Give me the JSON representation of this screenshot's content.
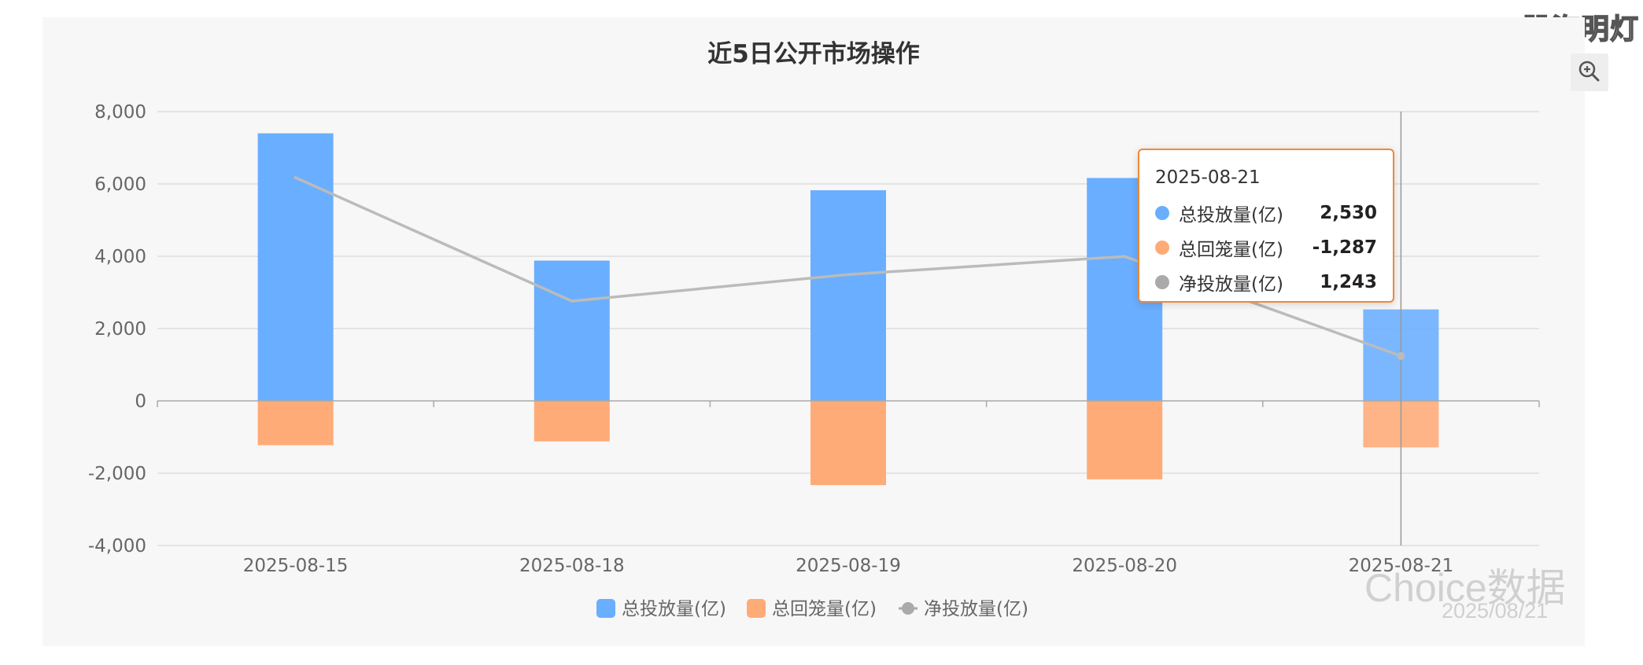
{
  "chart_data": {
    "type": "bar",
    "title": "近5日公开市场操作",
    "categories": [
      "2025-08-15",
      "2025-08-18",
      "2025-08-19",
      "2025-08-20",
      "2025-08-21"
    ],
    "series": [
      {
        "name": "总投放量(亿)",
        "type": "bar",
        "color": "#6aaeff",
        "values": [
          7400,
          3880,
          5825,
          6165,
          2530
        ]
      },
      {
        "name": "总回笼量(亿)",
        "type": "bar",
        "color": "#ffab77",
        "values": [
          -1225,
          -1120,
          -2330,
          -2170,
          -1287
        ]
      },
      {
        "name": "净投放量(亿)",
        "type": "line",
        "color": "#bbbbbb",
        "values": [
          6175,
          2760,
          3495,
          3995,
          1243
        ]
      }
    ],
    "y_ticks": [
      "8,000",
      "6,000",
      "4,000",
      "2,000",
      "0",
      "-2,000",
      "-4,000"
    ],
    "ylim": [
      -4000,
      8000
    ],
    "grid": true,
    "legend_position": "bottom-center",
    "highlight_category": "2025-08-21"
  },
  "tooltip": {
    "date": "2025-08-21",
    "rows": [
      {
        "label": "总投放量(亿)",
        "value": "2,530",
        "color": "#6aaeff"
      },
      {
        "label": "总回笼量(亿)",
        "value": "-1,287",
        "color": "#ffab77"
      },
      {
        "label": "净投放量(亿)",
        "value": "1,243",
        "color": "#aaaaaa"
      }
    ]
  },
  "toolbar": {
    "zoom_icon": "zoom-in-icon"
  },
  "brand": {
    "name": "股海明灯"
  },
  "watermark": {
    "name": "Choice数据",
    "date": "2025/08/21"
  }
}
